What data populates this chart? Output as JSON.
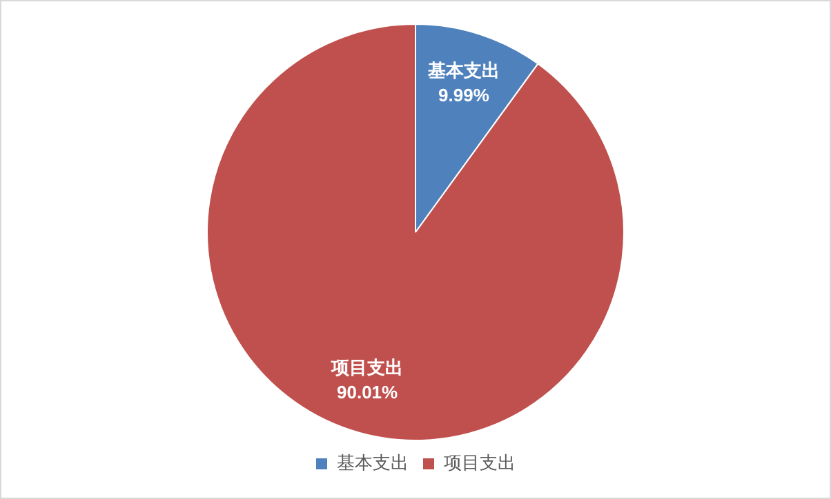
{
  "chart_data": {
    "type": "pie",
    "categories": [
      "基本支出",
      "项目支出"
    ],
    "values": [
      9.99,
      90.01
    ],
    "colors": [
      "#4f81bd",
      "#c0504d"
    ],
    "value_labels": [
      "9.99%",
      "90.01%"
    ],
    "legend": "bottom"
  }
}
